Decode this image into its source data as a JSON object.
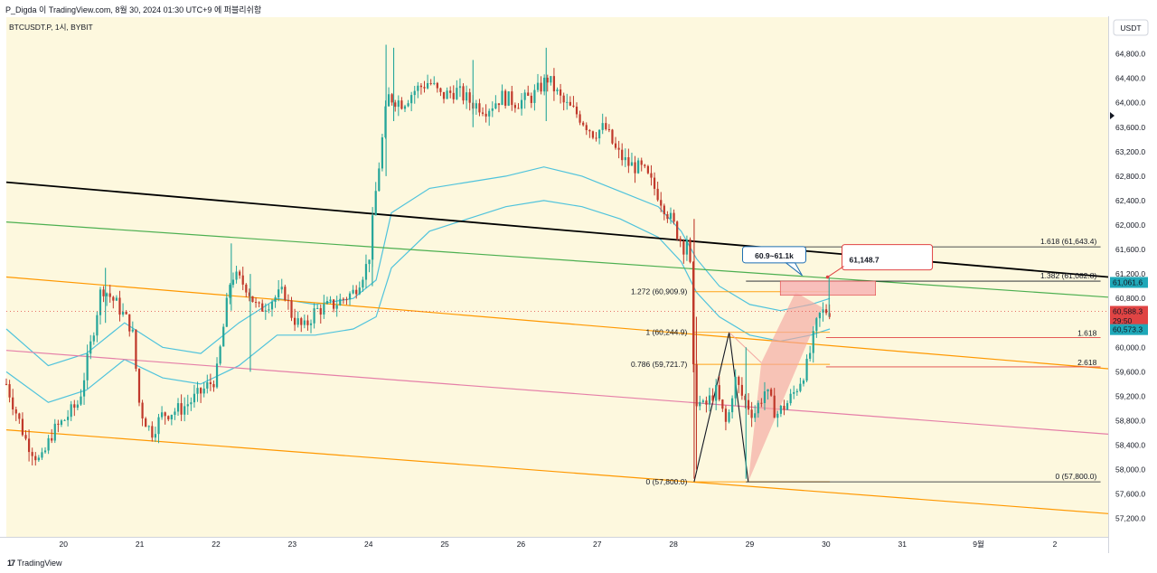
{
  "header": {
    "text": "P_Digda 이 TradingView.com, 8월 30, 2024 01:30 UTC+9 에 퍼블리쉬함"
  },
  "footer": {
    "logo_mark": "17",
    "logo_text": "TradingView"
  },
  "colors": {
    "background": "#fdf8de",
    "candle_up": "#26a69a",
    "candle_down": "#c0392b",
    "trendline_black": "#000000",
    "trendline_green": "#4caf50",
    "trendline_orange": "#ff9800",
    "trendline_pink": "#e57fa8",
    "band": "#4fc3dc",
    "harmonic_fill": "#f4a6a0",
    "zone_fill": "#f7b5b5",
    "label_red": "#e04444",
    "label_teal": "#1fa8b8"
  },
  "chart_data": {
    "type": "candlestick",
    "symbol_label": "BTCUSDT.P, 1시, BYBIT",
    "currency_button": "USDT",
    "x_tick_labels": [
      "20",
      "21",
      "22",
      "23",
      "24",
      "25",
      "26",
      "27",
      "28",
      "29",
      "30",
      "31",
      "9월",
      "2"
    ],
    "y_tick_labels": [
      "64,800.0",
      "64,400.0",
      "64,000.0",
      "63,600.0",
      "63,200.0",
      "62,800.0",
      "62,400.0",
      "62,000.0",
      "61,600.0",
      "61,200.0",
      "60,800.0",
      "60,400.0",
      "60,000.0",
      "59,600.0",
      "59,200.0",
      "58,800.0",
      "58,400.0",
      "58,000.0",
      "57,600.0",
      "57,200.0"
    ],
    "y_ticks": [
      64800,
      64400,
      64000,
      63600,
      63200,
      62800,
      62400,
      62000,
      61600,
      61200,
      60800,
      60400,
      60000,
      59600,
      59200,
      58800,
      58400,
      58000,
      57600,
      57200
    ],
    "x_axis_days": [
      20,
      21,
      22,
      23,
      24,
      25,
      26,
      27,
      28,
      29,
      30,
      31,
      32,
      33
    ],
    "ylim": [
      56900,
      65400
    ],
    "xlim": [
      19.25,
      33.7
    ],
    "ohlc_anchor_path": [
      [
        19.25,
        59400
      ],
      [
        19.5,
        58500
      ],
      [
        19.7,
        58100
      ],
      [
        19.85,
        58600
      ],
      [
        20.0,
        58800
      ],
      [
        20.2,
        59100
      ],
      [
        20.35,
        60000
      ],
      [
        20.5,
        61000
      ],
      [
        20.7,
        60700
      ],
      [
        20.9,
        60300
      ],
      [
        21.0,
        59000
      ],
      [
        21.15,
        58600
      ],
      [
        21.3,
        58900
      ],
      [
        21.55,
        59000
      ],
      [
        21.75,
        59200
      ],
      [
        22.0,
        59500
      ],
      [
        22.2,
        61200
      ],
      [
        22.4,
        61000
      ],
      [
        22.55,
        60600
      ],
      [
        22.75,
        60800
      ],
      [
        22.9,
        60900
      ],
      [
        23.0,
        60500
      ],
      [
        23.15,
        60300
      ],
      [
        23.3,
        60600
      ],
      [
        23.55,
        60700
      ],
      [
        23.8,
        60900
      ],
      [
        24.0,
        61400
      ],
      [
        24.1,
        62600
      ],
      [
        24.25,
        64100
      ],
      [
        24.45,
        64000
      ],
      [
        24.6,
        64200
      ],
      [
        24.8,
        64350
      ],
      [
        24.95,
        64100
      ],
      [
        25.15,
        64200
      ],
      [
        25.35,
        64000
      ],
      [
        25.55,
        63900
      ],
      [
        25.75,
        64100
      ],
      [
        25.95,
        64000
      ],
      [
        26.15,
        64100
      ],
      [
        26.35,
        64400
      ],
      [
        26.55,
        64000
      ],
      [
        26.75,
        63800
      ],
      [
        26.95,
        63500
      ],
      [
        27.1,
        63600
      ],
      [
        27.25,
        63200
      ],
      [
        27.4,
        63000
      ],
      [
        27.6,
        62900
      ],
      [
        27.8,
        62500
      ],
      [
        28.0,
        62000
      ],
      [
        28.15,
        61600
      ],
      [
        28.2,
        62000
      ],
      [
        28.27,
        59200
      ],
      [
        28.4,
        59000
      ],
      [
        28.55,
        59300
      ],
      [
        28.7,
        58700
      ],
      [
        28.8,
        59500
      ],
      [
        28.9,
        59200
      ],
      [
        29.05,
        58900
      ],
      [
        29.2,
        59300
      ],
      [
        29.35,
        58900
      ],
      [
        29.5,
        59100
      ],
      [
        29.6,
        59300
      ],
      [
        29.75,
        59700
      ],
      [
        29.9,
        60500
      ],
      [
        29.98,
        60600
      ],
      [
        30.08,
        60600
      ]
    ],
    "candle_spikes": [
      [
        20.55,
        61300,
        60400
      ],
      [
        22.2,
        61700,
        60600
      ],
      [
        22.45,
        61200,
        59600
      ],
      [
        24.05,
        62000,
        61000
      ],
      [
        24.23,
        64950,
        62800
      ],
      [
        24.33,
        64900,
        63700
      ],
      [
        25.37,
        64700,
        63600
      ],
      [
        26.33,
        64900,
        63700
      ],
      [
        28.27,
        62100,
        57850
      ],
      [
        28.3,
        60500,
        58000
      ],
      [
        28.95,
        60000,
        57850
      ],
      [
        30.04,
        61148.7,
        60500
      ]
    ],
    "series": [
      {
        "name": "",
        "color": "#000000",
        "points": [
          [
            19.25,
            62700
          ],
          [
            33.7,
            61150
          ]
        ]
      },
      {
        "name": "",
        "color": "#4caf50",
        "points": [
          [
            19.25,
            62050
          ],
          [
            33.7,
            60820
          ]
        ]
      },
      {
        "name": "",
        "color": "#ff9800",
        "points": [
          [
            19.25,
            61150
          ],
          [
            33.7,
            59650
          ]
        ]
      },
      {
        "name": "",
        "color": "#e57fa8",
        "points": [
          [
            19.25,
            59950
          ],
          [
            33.7,
            58580
          ]
        ]
      },
      {
        "name": "",
        "color": "#ff9800",
        "points": [
          [
            19.25,
            58650
          ],
          [
            33.7,
            57280
          ]
        ]
      },
      {
        "name": "",
        "color": "#4fc3dc",
        "points": [
          [
            19.25,
            60300
          ],
          [
            19.8,
            59700
          ],
          [
            20.3,
            59900
          ],
          [
            20.8,
            60400
          ],
          [
            21.3,
            60000
          ],
          [
            21.8,
            59900
          ],
          [
            22.3,
            60400
          ],
          [
            22.8,
            60800
          ],
          [
            23.3,
            60700
          ],
          [
            23.8,
            60800
          ],
          [
            24.1,
            61100
          ],
          [
            24.3,
            62200
          ],
          [
            24.8,
            62600
          ],
          [
            25.3,
            62700
          ],
          [
            25.8,
            62800
          ],
          [
            26.3,
            62950
          ],
          [
            26.8,
            62800
          ],
          [
            27.3,
            62550
          ],
          [
            27.8,
            62300
          ],
          [
            28.1,
            61900
          ],
          [
            28.3,
            61450
          ],
          [
            28.6,
            61000
          ],
          [
            29.0,
            60700
          ],
          [
            29.4,
            60600
          ],
          [
            29.8,
            60700
          ],
          [
            30.05,
            60800
          ]
        ]
      },
      {
        "name": "",
        "color": "#4fc3dc",
        "points": [
          [
            19.25,
            59600
          ],
          [
            19.8,
            59100
          ],
          [
            20.3,
            59300
          ],
          [
            20.8,
            59800
          ],
          [
            21.3,
            59500
          ],
          [
            21.8,
            59400
          ],
          [
            22.3,
            59700
          ],
          [
            22.8,
            60200
          ],
          [
            23.3,
            60200
          ],
          [
            23.8,
            60300
          ],
          [
            24.1,
            60500
          ],
          [
            24.3,
            61300
          ],
          [
            24.8,
            61900
          ],
          [
            25.3,
            62100
          ],
          [
            25.8,
            62300
          ],
          [
            26.3,
            62400
          ],
          [
            26.8,
            62300
          ],
          [
            27.3,
            62100
          ],
          [
            27.8,
            61800
          ],
          [
            28.1,
            61400
          ],
          [
            28.3,
            60900
          ],
          [
            28.6,
            60500
          ],
          [
            29.0,
            60200
          ],
          [
            29.4,
            60100
          ],
          [
            29.8,
            60200
          ],
          [
            30.05,
            60300
          ]
        ]
      }
    ],
    "fib_levels": [
      {
        "label": "1.618 (61,643.4)",
        "value": 61643.4,
        "side": "right",
        "color": "#131722"
      },
      {
        "label": "1.382 (61,082.8)",
        "value": 61082.8,
        "side": "right",
        "color": "#131722"
      },
      {
        "label": "1.272 (60,909.9)",
        "value": 60909.9,
        "side": "left",
        "color": "#ff9800"
      },
      {
        "label": "1 (60,244.9)",
        "value": 60244.9,
        "side": "left",
        "color": "#ff9800"
      },
      {
        "label": "1.618",
        "value": 60160,
        "side": "right",
        "color": "#e04444"
      },
      {
        "label": "0.786 (59,721.7)",
        "value": 59721.7,
        "side": "left",
        "color": "#ff9800"
      },
      {
        "label": "2.618",
        "value": 59680,
        "side": "right",
        "color": "#e04444"
      },
      {
        "label": "0 (57,800.0)",
        "value": 57800,
        "side": "left",
        "color": "#ff9800"
      },
      {
        "label": "0 (57,800.0)",
        "value": 57800,
        "side": "right",
        "color": "#131722"
      }
    ],
    "harmonic_pattern": {
      "points": [
        [
          28.27,
          57800
        ],
        [
          28.73,
          60244.9
        ],
        [
          28.98,
          57800
        ],
        [
          29.6,
          60900
        ]
      ]
    },
    "target_zone": {
      "label": "60.9~61.1k",
      "x_from": 29.4,
      "x_to": 30.65,
      "y_from": 60909.9,
      "y_to": 61082.8
    },
    "callout": {
      "label": "61,148.7",
      "x": 30.02,
      "y": 61148.7
    },
    "price_tags": [
      {
        "label": "61,061.6",
        "value": 61061.6,
        "color": "#1fa8b8"
      },
      {
        "label": "60,588.3",
        "value": 60588.3,
        "color": "#e04444"
      },
      {
        "label": "29:50",
        "value": 60430,
        "color": "#e04444"
      },
      {
        "label": "60,573.3",
        "value": 60290,
        "color": "#1fa8b8"
      }
    ],
    "last_price": 60588.3
  }
}
